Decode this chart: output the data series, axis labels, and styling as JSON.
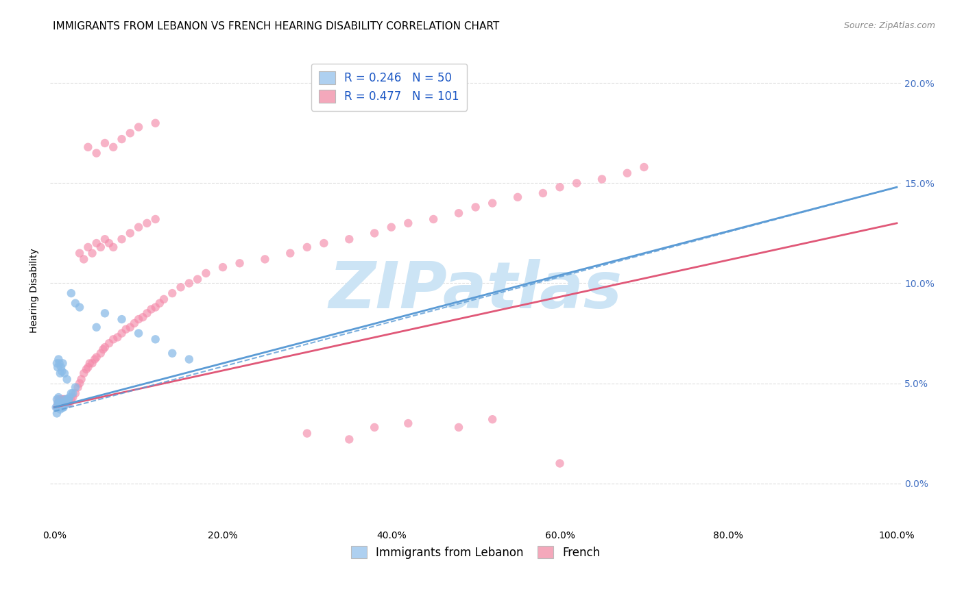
{
  "title": "IMMIGRANTS FROM LEBANON VS FRENCH HEARING DISABILITY CORRELATION CHART",
  "source": "Source: ZipAtlas.com",
  "ylabel": "Hearing Disability",
  "legend_label_1": "R = 0.246   N = 50",
  "legend_label_2": "R = 0.477   N = 101",
  "legend_color_1": "#aed0f0",
  "legend_color_2": "#f4a8bb",
  "scatter_color_1": "#8bbce8",
  "scatter_color_2": "#f48aaa",
  "line_color_1": "#5b9bd5",
  "line_color_2": "#e05878",
  "watermark": "ZIPatlas",
  "watermark_color": "#cce4f5",
  "background_color": "#ffffff",
  "grid_color": "#dddddd",
  "title_fontsize": 11,
  "axis_label_fontsize": 10,
  "tick_fontsize": 10,
  "legend_fontsize": 12,
  "xlim": [
    -0.005,
    1.005
  ],
  "ylim": [
    -0.022,
    0.215
  ],
  "x_ticks": [
    0.0,
    0.2,
    0.4,
    0.6,
    0.8,
    1.0
  ],
  "y_ticks": [
    0.0,
    0.05,
    0.1,
    0.15,
    0.2
  ],
  "blue_scatter_x": [
    0.002,
    0.003,
    0.003,
    0.004,
    0.004,
    0.005,
    0.005,
    0.005,
    0.006,
    0.006,
    0.007,
    0.007,
    0.008,
    0.008,
    0.009,
    0.009,
    0.01,
    0.01,
    0.011,
    0.011,
    0.012,
    0.013,
    0.014,
    0.015,
    0.016,
    0.017,
    0.018,
    0.02,
    0.022,
    0.025,
    0.003,
    0.004,
    0.005,
    0.006,
    0.007,
    0.008,
    0.009,
    0.01,
    0.012,
    0.015,
    0.02,
    0.025,
    0.03,
    0.05,
    0.06,
    0.08,
    0.1,
    0.12,
    0.14,
    0.16
  ],
  "blue_scatter_y": [
    0.038,
    0.042,
    0.035,
    0.04,
    0.038,
    0.043,
    0.04,
    0.038,
    0.04,
    0.038,
    0.038,
    0.037,
    0.038,
    0.04,
    0.038,
    0.04,
    0.038,
    0.04,
    0.038,
    0.04,
    0.04,
    0.042,
    0.04,
    0.042,
    0.04,
    0.042,
    0.043,
    0.045,
    0.045,
    0.048,
    0.06,
    0.058,
    0.062,
    0.06,
    0.055,
    0.058,
    0.056,
    0.06,
    0.055,
    0.052,
    0.095,
    0.09,
    0.088,
    0.078,
    0.085,
    0.082,
    0.075,
    0.072,
    0.065,
    0.062
  ],
  "pink_scatter_x": [
    0.003,
    0.004,
    0.005,
    0.006,
    0.007,
    0.008,
    0.009,
    0.01,
    0.011,
    0.012,
    0.013,
    0.014,
    0.015,
    0.016,
    0.017,
    0.018,
    0.02,
    0.022,
    0.025,
    0.028,
    0.03,
    0.032,
    0.035,
    0.038,
    0.04,
    0.042,
    0.045,
    0.048,
    0.05,
    0.055,
    0.058,
    0.06,
    0.065,
    0.07,
    0.075,
    0.08,
    0.085,
    0.09,
    0.095,
    0.1,
    0.105,
    0.11,
    0.115,
    0.12,
    0.125,
    0.13,
    0.14,
    0.15,
    0.16,
    0.17,
    0.18,
    0.2,
    0.22,
    0.25,
    0.28,
    0.3,
    0.32,
    0.35,
    0.38,
    0.4,
    0.42,
    0.45,
    0.48,
    0.5,
    0.52,
    0.55,
    0.58,
    0.6,
    0.62,
    0.65,
    0.68,
    0.7,
    0.03,
    0.035,
    0.04,
    0.045,
    0.05,
    0.055,
    0.06,
    0.065,
    0.07,
    0.08,
    0.09,
    0.1,
    0.11,
    0.12,
    0.04,
    0.05,
    0.06,
    0.07,
    0.08,
    0.09,
    0.1,
    0.12,
    0.3,
    0.35,
    0.38,
    0.42,
    0.48,
    0.52,
    0.6
  ],
  "pink_scatter_y": [
    0.038,
    0.04,
    0.042,
    0.04,
    0.042,
    0.04,
    0.042,
    0.04,
    0.042,
    0.04,
    0.042,
    0.04,
    0.042,
    0.04,
    0.042,
    0.04,
    0.042,
    0.043,
    0.045,
    0.048,
    0.05,
    0.052,
    0.055,
    0.057,
    0.058,
    0.06,
    0.06,
    0.062,
    0.063,
    0.065,
    0.067,
    0.068,
    0.07,
    0.072,
    0.073,
    0.075,
    0.077,
    0.078,
    0.08,
    0.082,
    0.083,
    0.085,
    0.087,
    0.088,
    0.09,
    0.092,
    0.095,
    0.098,
    0.1,
    0.102,
    0.105,
    0.108,
    0.11,
    0.112,
    0.115,
    0.118,
    0.12,
    0.122,
    0.125,
    0.128,
    0.13,
    0.132,
    0.135,
    0.138,
    0.14,
    0.143,
    0.145,
    0.148,
    0.15,
    0.152,
    0.155,
    0.158,
    0.115,
    0.112,
    0.118,
    0.115,
    0.12,
    0.118,
    0.122,
    0.12,
    0.118,
    0.122,
    0.125,
    0.128,
    0.13,
    0.132,
    0.168,
    0.165,
    0.17,
    0.168,
    0.172,
    0.175,
    0.178,
    0.18,
    0.025,
    0.022,
    0.028,
    0.03,
    0.028,
    0.032,
    0.01
  ],
  "blue_line_x": [
    0.0,
    1.0
  ],
  "blue_line_y": [
    0.038,
    0.148
  ],
  "pink_line_x": [
    0.0,
    1.0
  ],
  "pink_line_y": [
    0.038,
    0.13
  ],
  "blue_dash_line_x": [
    0.0,
    1.0
  ],
  "blue_dash_line_y": [
    0.036,
    0.148
  ]
}
